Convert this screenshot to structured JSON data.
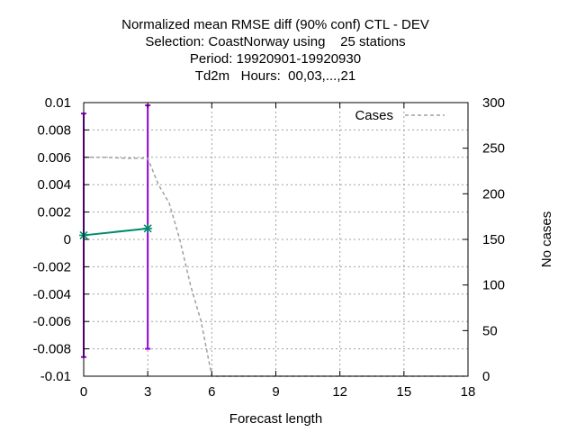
{
  "chart_data": {
    "type": "line",
    "title_lines": [
      "Normalized mean RMSE diff (90% conf) CTL - DEV",
      "Selection: CoastNorway using    25 stations",
      "Period: 19920901-19920930",
      "Td2m   Hours:  00,03,...,21"
    ],
    "xlabel": "Forecast length",
    "ylabel": "",
    "y2label": "No cases",
    "xlim": [
      0,
      18
    ],
    "ylim": [
      -0.01,
      0.01
    ],
    "y2lim": [
      0,
      300
    ],
    "x_ticks": [
      0,
      3,
      6,
      9,
      12,
      15,
      18
    ],
    "y_ticks": [
      -0.01,
      -0.008,
      -0.006,
      -0.004,
      -0.002,
      0,
      0.002,
      0.004,
      0.006,
      0.008,
      0.01
    ],
    "y_tick_labels": [
      "-0.01",
      "-0.008",
      "-0.006",
      "-0.004",
      "-0.002",
      "0",
      "0.002",
      "0.004",
      "0.006",
      "0.008",
      "0.01"
    ],
    "y2_ticks": [
      0,
      50,
      100,
      150,
      200,
      250,
      300
    ],
    "grid": true,
    "legend_position": "top-right",
    "series": [
      {
        "name": "",
        "axis": "y",
        "style": "line-with-errorbars",
        "color": "#008b6b",
        "errorbar_color": "#9400d3",
        "x": [
          0,
          3
        ],
        "y": [
          0.0003,
          0.0008
        ],
        "lower": [
          -0.0086,
          -0.008
        ],
        "upper": [
          0.0092,
          0.0098
        ]
      },
      {
        "name": "Cases",
        "axis": "y2",
        "style": "dashed",
        "color": "#a0a0a0",
        "x": [
          0,
          1,
          2,
          3,
          3.5,
          4,
          4.5,
          5,
          5.5,
          6,
          7,
          8,
          9,
          10,
          11,
          12,
          13,
          14,
          15,
          16,
          17,
          18
        ],
        "y": [
          240,
          240,
          239,
          239,
          210,
          190,
          150,
          100,
          60,
          0,
          0,
          0,
          0,
          0,
          0,
          0,
          0,
          0,
          0,
          0,
          0,
          0
        ]
      }
    ]
  }
}
